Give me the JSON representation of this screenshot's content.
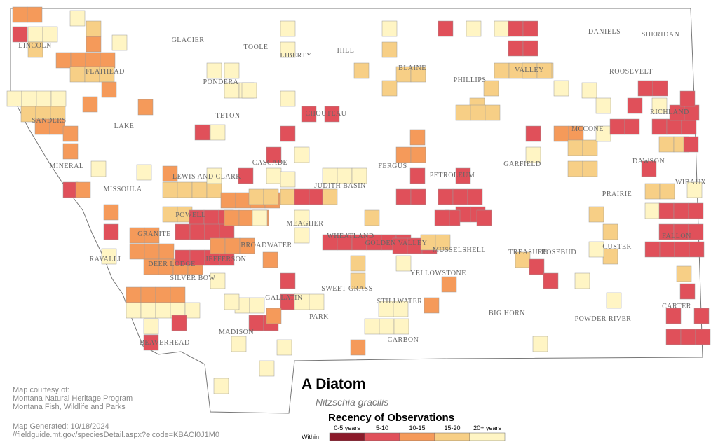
{
  "title": "A Diatom",
  "subtitle": "Nitzschia gracilis",
  "credits": [
    "Map courtesy of:",
    "Montana Natural Heritage Program",
    "Montana Fish, Wildlife and Parks"
  ],
  "generated": [
    "Map Generated: 10/18/2024",
    "//fieldguide.mt.gov/speciesDetail.aspx?elcode=KBACI0J1M0"
  ],
  "legend": {
    "title": "Recency of Observations",
    "prefix": "Within",
    "items": [
      "0-5 years",
      "5-10",
      "10-15",
      "15-20",
      "20+ years"
    ]
  },
  "counties": [
    "GLACIER",
    "TOOLE",
    "LIBERTY",
    "HILL",
    "BLAINE",
    "PHILLIPS",
    "VALLEY",
    "DANIELS",
    "SHERIDAN",
    "ROOSEVELT",
    "RICHLAND",
    "LINCOLN",
    "FLATHEAD",
    "PONDERA",
    "TETON",
    "CHOUTEAU",
    "SANDERS",
    "LAKE",
    "MCCONE",
    "GARFIELD",
    "DAWSON",
    "WIBAUX",
    "MINERAL",
    "CASCADE",
    "FERGUS",
    "PETROLEUM",
    "MISSOULA",
    "LEWIS AND CLARK",
    "JUDITH BASIN",
    "PRAIRIE",
    "POWELL",
    "MEAGHER",
    "FALLON",
    "GRANITE",
    "WHEATLAND",
    "GOLDEN VALLEY",
    "MUSSELSHELL",
    "BROADWATER",
    "CUSTER",
    "TREASURE",
    "ROSEBUD",
    "RAVALLI",
    "DEER LODGE",
    "JEFFERSON",
    "SILVER BOW",
    "YELLOWSTONE",
    "SWEET GRASS",
    "STILLWATER",
    "GALLATIN",
    "CARTER",
    "PARK",
    "BIG HORN",
    "POWDER RIVER",
    "MADISON",
    "CARBON",
    "BEAVERHEAD"
  ]
}
